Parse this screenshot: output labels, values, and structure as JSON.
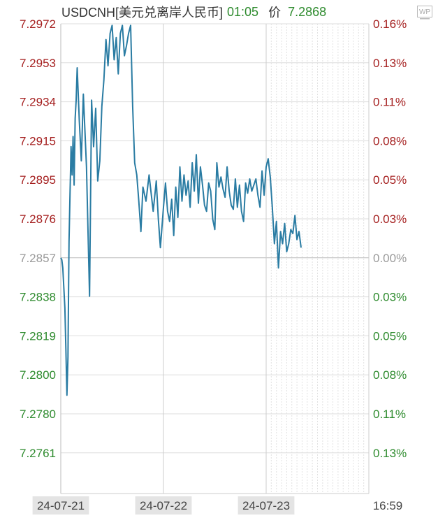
{
  "header": {
    "symbol": "USDCNH[美元兑离岸人民币]",
    "time": "01:05",
    "price_label": "价",
    "price": "7.2868"
  },
  "logo": {
    "text": "WP"
  },
  "colors": {
    "line": "#2a7ca3",
    "up": "#a52020",
    "down": "#2e8b2e",
    "neutral": "#999999",
    "grid": "#dddddd",
    "baseline": "#bbbbbb"
  },
  "chart_data": {
    "type": "line",
    "title": "USDCNH[美元兑离岸人民币]",
    "baseline": 7.2857,
    "ylim": [
      7.2742,
      7.2972
    ],
    "y_ticks_left": [
      {
        "label": "7.2972",
        "dir": "up"
      },
      {
        "label": "7.2953",
        "dir": "up"
      },
      {
        "label": "7.2934",
        "dir": "up"
      },
      {
        "label": "7.2915",
        "dir": "up"
      },
      {
        "label": "7.2895",
        "dir": "up"
      },
      {
        "label": "7.2876",
        "dir": "up"
      },
      {
        "label": "7.2857",
        "dir": "flat"
      },
      {
        "label": "7.2838",
        "dir": "down"
      },
      {
        "label": "7.2819",
        "dir": "down"
      },
      {
        "label": "7.2800",
        "dir": "down"
      },
      {
        "label": "7.2780",
        "dir": "down"
      },
      {
        "label": "7.2761",
        "dir": "down"
      }
    ],
    "y_ticks_right": [
      {
        "label": "0.16%",
        "dir": "up"
      },
      {
        "label": "0.13%",
        "dir": "up"
      },
      {
        "label": "0.11%",
        "dir": "up"
      },
      {
        "label": "0.08%",
        "dir": "up"
      },
      {
        "label": "0.05%",
        "dir": "up"
      },
      {
        "label": "0.03%",
        "dir": "up"
      },
      {
        "label": "0.00%",
        "dir": "flat"
      },
      {
        "label": "0.03%",
        "dir": "down"
      },
      {
        "label": "0.05%",
        "dir": "down"
      },
      {
        "label": "0.08%",
        "dir": "down"
      },
      {
        "label": "0.11%",
        "dir": "down"
      },
      {
        "label": "0.13%",
        "dir": "down"
      }
    ],
    "x_labels": [
      "24-07-21",
      "24-07-22",
      "24-07-23",
      "16:59"
    ],
    "grid": true,
    "series": [
      {
        "x": [
          0.0,
          0.01,
          0.02,
          0.04,
          0.05,
          0.06,
          0.07,
          0.08,
          0.09,
          0.1,
          0.11,
          0.12,
          0.13,
          0.14,
          0.15,
          0.16,
          0.18,
          0.2,
          0.22,
          0.25,
          0.28,
          0.3,
          0.32,
          0.34,
          0.36,
          0.38,
          0.4,
          0.42,
          0.44,
          0.46,
          0.48,
          0.5,
          0.52,
          0.54,
          0.56,
          0.58,
          0.6,
          0.62,
          0.64,
          0.66,
          0.68,
          0.7,
          0.72,
          0.74,
          0.76,
          0.78,
          0.8,
          0.83,
          0.86,
          0.9,
          0.93,
          0.95,
          0.97,
          1.0,
          1.02,
          1.04,
          1.06,
          1.08,
          1.1,
          1.12,
          1.14,
          1.16,
          1.18,
          1.2,
          1.22,
          1.24,
          1.26,
          1.28,
          1.3,
          1.32,
          1.34,
          1.36,
          1.38,
          1.4,
          1.42,
          1.44,
          1.46,
          1.48,
          1.5,
          1.52,
          1.54,
          1.56,
          1.58,
          1.6,
          1.62,
          1.64,
          1.66,
          1.68,
          1.7,
          1.72,
          1.74,
          1.76,
          1.78,
          1.8,
          1.82,
          1.84,
          1.86,
          1.88,
          1.9,
          1.92,
          1.94,
          1.96,
          1.98,
          2.0,
          2.02,
          2.04,
          2.06,
          2.08,
          2.1,
          2.12,
          2.14,
          2.16,
          2.18,
          2.2,
          2.22,
          2.24,
          2.26,
          2.28,
          2.3,
          2.32,
          2.34
        ],
        "y": [
          7.2857,
          7.2856,
          7.2852,
          7.2832,
          7.2812,
          7.2789,
          7.2808,
          7.2865,
          7.2888,
          7.2912,
          7.2898,
          7.2917,
          7.2893,
          7.2926,
          7.2935,
          7.2951,
          7.2925,
          7.2905,
          7.2938,
          7.2902,
          7.2838,
          7.2935,
          7.2912,
          7.2931,
          7.2895,
          7.2905,
          7.2932,
          7.2945,
          7.2965,
          7.2952,
          7.2968,
          7.2972,
          7.2955,
          7.2966,
          7.2948,
          7.2968,
          7.2972,
          7.2957,
          7.2962,
          7.2968,
          7.2972,
          7.2932,
          7.2904,
          7.2898,
          7.2885,
          7.287,
          7.2892,
          7.2885,
          7.2898,
          7.288,
          7.2895,
          7.2876,
          7.2862,
          7.2882,
          7.2894,
          7.288,
          7.2875,
          7.2886,
          7.2868,
          7.2892,
          7.2877,
          7.2902,
          7.2885,
          7.2898,
          7.2888,
          7.2895,
          7.2882,
          7.2904,
          7.289,
          7.2908,
          7.2884,
          7.2902,
          7.2893,
          7.2883,
          7.288,
          7.2894,
          7.289,
          7.2876,
          7.2871,
          7.2904,
          7.2892,
          7.2897,
          7.2891,
          7.2887,
          7.2902,
          7.289,
          7.2883,
          7.2881,
          7.2896,
          7.2882,
          7.2893,
          7.288,
          7.2875,
          7.2894,
          7.2889,
          7.2896,
          7.289,
          7.2893,
          7.2896,
          7.2888,
          7.2882,
          7.29,
          7.2888,
          7.2902,
          7.2906,
          7.2897,
          7.2882,
          7.2864,
          7.2875,
          7.2852,
          7.287,
          7.2864,
          7.2874,
          7.286,
          7.2864,
          7.2871,
          7.2869,
          7.2878,
          7.2866,
          7.287,
          7.2862
        ]
      }
    ]
  }
}
